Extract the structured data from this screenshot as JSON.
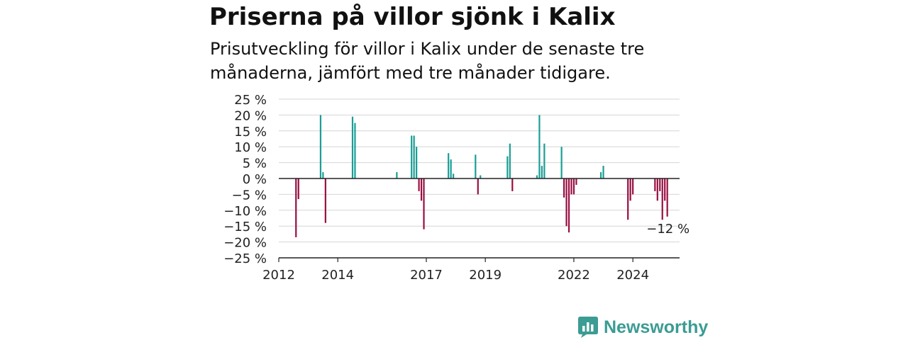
{
  "title": "Priserna på villor sjönk i Kalix",
  "subtitle": "Prisutveckling för villor i Kalix under de senaste tre månaderna, jämfört med tre månader tidigare.",
  "brand": {
    "name": "Newsworthy",
    "logo_icon": "chart-speech-bubble-icon"
  },
  "colors": {
    "positive": "#1a9e96",
    "negative": "#980f42",
    "brand": "#3b9c94"
  },
  "chart_data": {
    "type": "bar",
    "title": "",
    "xlabel": "",
    "ylabel": "",
    "ylim": [
      -25,
      25
    ],
    "yticks": [
      25,
      20,
      15,
      10,
      5,
      0,
      -5,
      -10,
      -15,
      -20,
      -25
    ],
    "y_tick_labels": [
      "25 %",
      "20 %",
      "15 %",
      "10 %",
      "5 %",
      "0 %",
      "−5 %",
      "−10 %",
      "−15 %",
      "−20 %",
      "−25 %"
    ],
    "xlim": [
      "2012-01",
      "2025-08"
    ],
    "xticks": [
      "2012",
      "2014",
      "2017",
      "2019",
      "2022",
      "2024"
    ],
    "grid": true,
    "annotation": {
      "text": "−12 %",
      "month": "2025-03",
      "value": -12
    },
    "months": [
      "2012-08",
      "2012-09",
      "2013-06",
      "2013-07",
      "2013-08",
      "2014-07",
      "2014-08",
      "2016-01",
      "2016-07",
      "2016-08",
      "2016-09",
      "2016-10",
      "2016-11",
      "2016-12",
      "2017-10",
      "2017-11",
      "2017-12",
      "2018-09",
      "2018-10",
      "2018-11",
      "2019-10",
      "2019-11",
      "2019-12",
      "2020-10",
      "2020-11",
      "2020-12",
      "2021-01",
      "2021-08",
      "2021-09",
      "2021-10",
      "2021-11",
      "2021-12",
      "2022-01",
      "2022-02",
      "2022-12",
      "2023-01",
      "2023-11",
      "2023-12",
      "2024-01",
      "2024-10",
      "2024-11",
      "2024-12",
      "2025-01",
      "2025-02",
      "2025-03"
    ],
    "values": [
      -18.5,
      -6.5,
      20,
      2,
      -14,
      19.5,
      17.5,
      2,
      13.5,
      13.5,
      10,
      -4,
      -7,
      -16,
      8,
      6,
      1.5,
      7.5,
      -5,
      1,
      7,
      11,
      -4,
      1,
      20,
      4,
      11,
      10,
      -6,
      -15,
      -17,
      -5,
      -5,
      -2,
      2,
      4,
      -13,
      -7,
      -5,
      -4,
      -7,
      -4,
      -13,
      -7,
      -12
    ]
  }
}
